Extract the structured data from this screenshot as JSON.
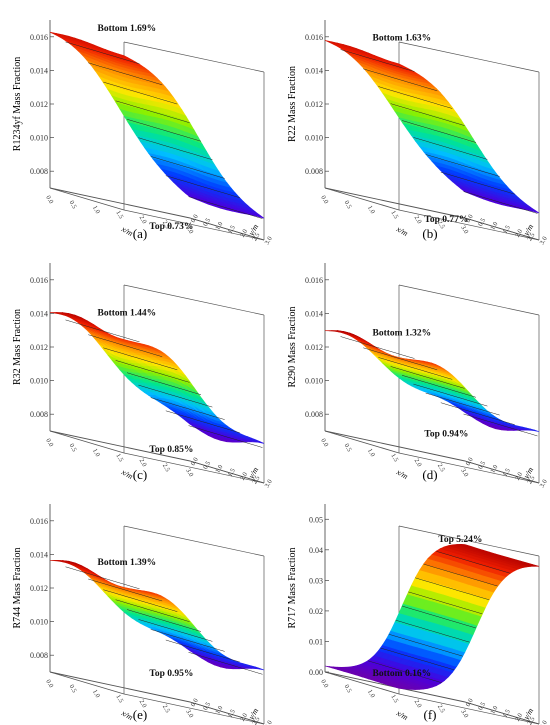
{
  "chart_data": [
    {
      "type": "surface3d",
      "panel_label": "(a)",
      "zlabel": "R1234yf Mass Fraction",
      "xlabel": "x/m",
      "ylabel": "y/m",
      "z_ticks": [
        "0.008",
        "0.010",
        "0.012",
        "0.014",
        "0.016"
      ],
      "x_ticks": [
        "0.0",
        "0.5",
        "1.0",
        "1.5",
        "2.0",
        "2.5",
        "3.0"
      ],
      "y_ticks": [
        "0.0",
        "0.5",
        "1.0",
        "1.5",
        "2.0",
        "2.5",
        "3.0"
      ],
      "zlim": [
        0.007,
        0.017
      ],
      "z_bottom": 0.01685,
      "z_top": 0.0073,
      "annotations": {
        "bottom": "Bottom 1.69%",
        "top": "Top 0.73%"
      }
    },
    {
      "type": "surface3d",
      "panel_label": "(b)",
      "zlabel": "R22 Mass Fraction",
      "xlabel": "x/m",
      "ylabel": "y/m",
      "z_ticks": [
        "0.008",
        "0.010",
        "0.012",
        "0.014",
        "0.016"
      ],
      "x_ticks": [
        "0.0",
        "0.5",
        "1.0",
        "1.5",
        "2.0",
        "2.5",
        "3.0"
      ],
      "y_ticks": [
        "0.0",
        "0.5",
        "1.0",
        "1.5",
        "2.0",
        "2.5",
        "3.0"
      ],
      "zlim": [
        0.007,
        0.017
      ],
      "z_bottom": 0.0163,
      "z_top": 0.0077,
      "annotations": {
        "bottom": "Bottom 1.63%",
        "top": "Top 0.77%"
      }
    },
    {
      "type": "surface3d",
      "panel_label": "(c)",
      "zlabel": "R32 Mass Fraction",
      "xlabel": "x/m",
      "ylabel": "y/m",
      "z_ticks": [
        "0.008",
        "0.010",
        "0.012",
        "0.014",
        "0.016"
      ],
      "x_ticks": [
        "0.0",
        "0.5",
        "1.0",
        "1.5",
        "2.0",
        "2.5",
        "3.0"
      ],
      "y_ticks": [
        "0.0",
        "0.5",
        "1.0",
        "1.5",
        "2.0",
        "2.5",
        "3.0"
      ],
      "zlim": [
        0.007,
        0.017
      ],
      "z_bottom": 0.0144,
      "z_top": 0.0085,
      "annotations": {
        "bottom": "Bottom 1.44%",
        "top": "Top 0.85%"
      }
    },
    {
      "type": "surface3d",
      "panel_label": "(d)",
      "zlabel": "R290 Mass Fraction",
      "xlabel": "x/m",
      "ylabel": "y/m",
      "z_ticks": [
        "0.008",
        "0.010",
        "0.012",
        "0.014",
        "0.016"
      ],
      "x_ticks": [
        "0.0",
        "0.5",
        "1.0",
        "1.5",
        "2.0",
        "2.5",
        "3.0"
      ],
      "y_ticks": [
        "0.0",
        "0.5",
        "1.0",
        "1.5",
        "2.0",
        "2.5",
        "3.0"
      ],
      "zlim": [
        0.007,
        0.017
      ],
      "z_bottom": 0.0132,
      "z_top": 0.0094,
      "annotations": {
        "bottom": "Bottom 1.32%",
        "top": "Top 0.94%"
      }
    },
    {
      "type": "surface3d",
      "panel_label": "(e)",
      "zlabel": "R744 Mass Fraction",
      "xlabel": "x/m",
      "ylabel": "y/m",
      "z_ticks": [
        "0.008",
        "0.010",
        "0.012",
        "0.014",
        "0.016"
      ],
      "x_ticks": [
        "0.0",
        "0.5",
        "1.0",
        "1.5",
        "2.0",
        "2.5",
        "3.0"
      ],
      "y_ticks": [
        "0.0",
        "0.5",
        "1.0",
        "1.5",
        "2.0",
        "2.5",
        "3.0"
      ],
      "zlim": [
        0.007,
        0.017
      ],
      "z_bottom": 0.0139,
      "z_top": 0.0095,
      "annotations": {
        "bottom": "Bottom 1.39%",
        "top": "Top 0.95%"
      }
    },
    {
      "type": "surface3d",
      "panel_label": "(f)",
      "zlabel": "R717 Mass Fraction",
      "xlabel": "x/m",
      "ylabel": "y/m",
      "z_ticks": [
        "0.00",
        "0.01",
        "0.02",
        "0.03",
        "0.04",
        "0.05"
      ],
      "x_ticks": [
        "0.0",
        "0.5",
        "1.0",
        "1.5",
        "2.0",
        "2.5",
        "3.0"
      ],
      "y_ticks": [
        "0.0",
        "0.5",
        "1.0",
        "1.5",
        "2.0",
        "2.5",
        "3.0"
      ],
      "zlim": [
        0.0,
        0.055
      ],
      "z_bottom": 0.0016,
      "z_top": 0.0524,
      "annotations": {
        "bottom": "Bottom 0.16%",
        "top": "Top 5.24%"
      }
    }
  ]
}
